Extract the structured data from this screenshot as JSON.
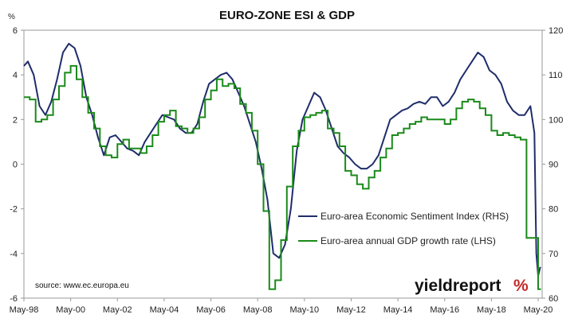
{
  "chart_data": {
    "type": "line",
    "title": "EURO-ZONE ESI & GDP",
    "left_axis": {
      "unit": "%",
      "ylim": [
        -6,
        6
      ],
      "ticks": [
        "6",
        "4",
        "2",
        "0",
        "-2",
        "-4",
        "-6"
      ]
    },
    "right_axis": {
      "ylim": [
        60,
        120
      ],
      "ticks": [
        "120",
        "110",
        "100",
        "90",
        "80",
        "70",
        "60"
      ]
    },
    "x_axis": {
      "range": [
        1998.33,
        2020.5
      ],
      "tick_labels": [
        "May-98",
        "May-00",
        "May-02",
        "May-04",
        "May-06",
        "May-08",
        "May-10",
        "May-12",
        "May-14",
        "May-16",
        "May-18",
        "May-20"
      ],
      "tick_positions": [
        1998.33,
        2000.33,
        2002.33,
        2004.33,
        2006.33,
        2008.33,
        2010.33,
        2012.33,
        2014.33,
        2016.33,
        2018.33,
        2020.33
      ]
    },
    "gridlines": false,
    "legend_position": "lower-right",
    "series": [
      {
        "name": "Euro-area Economic Sentiment Index (RHS)",
        "axis": "right",
        "color": "#1f2d6b",
        "x": [
          1998.33,
          1998.5,
          1998.75,
          1999.0,
          1999.25,
          1999.5,
          1999.75,
          2000.0,
          2000.25,
          2000.5,
          2000.75,
          2001.0,
          2001.25,
          2001.5,
          2001.75,
          2002.0,
          2002.25,
          2002.5,
          2002.75,
          2003.0,
          2003.25,
          2003.5,
          2003.75,
          2004.0,
          2004.25,
          2004.5,
          2004.75,
          2005.0,
          2005.25,
          2005.5,
          2005.75,
          2006.0,
          2006.25,
          2006.5,
          2006.75,
          2007.0,
          2007.25,
          2007.5,
          2007.75,
          2008.0,
          2008.25,
          2008.5,
          2008.75,
          2009.0,
          2009.25,
          2009.5,
          2009.75,
          2010.0,
          2010.25,
          2010.5,
          2010.75,
          2011.0,
          2011.25,
          2011.5,
          2011.75,
          2012.0,
          2012.25,
          2012.5,
          2012.75,
          2013.0,
          2013.25,
          2013.5,
          2013.75,
          2014.0,
          2014.25,
          2014.5,
          2014.75,
          2015.0,
          2015.25,
          2015.5,
          2015.75,
          2016.0,
          2016.25,
          2016.5,
          2016.75,
          2017.0,
          2017.25,
          2017.5,
          2017.75,
          2018.0,
          2018.25,
          2018.5,
          2018.75,
          2019.0,
          2019.25,
          2019.5,
          2019.75,
          2020.0,
          2020.17,
          2020.25,
          2020.33,
          2020.42
        ],
        "values": [
          112,
          113,
          110,
          103,
          101,
          104,
          109,
          115,
          117,
          116,
          112,
          105,
          101,
          96,
          92,
          96,
          96.5,
          95,
          93.5,
          93,
          92,
          95,
          97,
          99,
          101,
          100.5,
          100,
          98,
          97,
          97,
          99,
          104,
          108,
          109,
          110,
          110.5,
          109,
          106,
          103,
          99,
          95,
          89,
          82,
          70,
          69,
          72,
          80,
          93,
          100,
          103,
          106,
          105,
          102,
          98,
          94,
          92.5,
          91.5,
          90,
          89,
          89,
          90,
          92,
          96,
          100,
          101,
          102,
          102.5,
          103.5,
          104,
          103.5,
          105,
          105,
          103,
          104,
          106,
          109,
          111,
          113,
          115,
          114,
          111,
          110,
          108,
          104,
          102,
          101,
          101,
          103,
          97,
          70,
          65,
          67
        ]
      },
      {
        "name": "Euro-area annual GDP growth rate (LHS)",
        "axis": "left",
        "color": "#1a8a1a",
        "step": true,
        "x": [
          1998.33,
          1998.58,
          1998.83,
          1999.08,
          1999.33,
          1999.58,
          1999.83,
          2000.08,
          2000.33,
          2000.58,
          2000.83,
          2001.08,
          2001.33,
          2001.58,
          2001.83,
          2002.08,
          2002.33,
          2002.58,
          2002.83,
          2003.08,
          2003.33,
          2003.58,
          2003.83,
          2004.08,
          2004.33,
          2004.58,
          2004.83,
          2005.08,
          2005.33,
          2005.58,
          2005.83,
          2006.08,
          2006.33,
          2006.58,
          2006.83,
          2007.08,
          2007.33,
          2007.58,
          2007.83,
          2008.08,
          2008.33,
          2008.58,
          2008.83,
          2009.08,
          2009.33,
          2009.58,
          2009.83,
          2010.08,
          2010.33,
          2010.58,
          2010.83,
          2011.08,
          2011.33,
          2011.58,
          2011.83,
          2012.08,
          2012.33,
          2012.58,
          2012.83,
          2013.08,
          2013.33,
          2013.58,
          2013.83,
          2014.08,
          2014.33,
          2014.58,
          2014.83,
          2015.08,
          2015.33,
          2015.58,
          2015.83,
          2016.08,
          2016.33,
          2016.58,
          2016.83,
          2017.08,
          2017.33,
          2017.58,
          2017.83,
          2018.08,
          2018.33,
          2018.58,
          2018.83,
          2019.08,
          2019.33,
          2019.58,
          2019.83,
          2020.08,
          2020.33
        ],
        "values": [
          3.0,
          2.9,
          1.9,
          2.0,
          2.2,
          2.9,
          3.5,
          4.1,
          4.4,
          3.8,
          3.0,
          2.3,
          1.6,
          0.8,
          0.4,
          0.3,
          0.9,
          1.1,
          0.7,
          0.7,
          0.5,
          0.8,
          1.3,
          1.9,
          2.2,
          2.4,
          1.7,
          1.6,
          1.4,
          1.6,
          2.1,
          2.9,
          3.3,
          3.8,
          3.5,
          3.6,
          3.4,
          2.7,
          2.3,
          1.5,
          0.0,
          -2.1,
          -5.6,
          -5.2,
          -3.4,
          -1.0,
          0.8,
          1.5,
          2.1,
          2.2,
          2.3,
          2.4,
          1.6,
          1.4,
          0.8,
          -0.3,
          -0.5,
          -0.9,
          -1.1,
          -0.6,
          -0.3,
          0.3,
          0.7,
          1.3,
          1.4,
          1.6,
          1.8,
          1.9,
          2.1,
          2.0,
          2.0,
          2.0,
          1.8,
          2.0,
          2.5,
          2.8,
          2.9,
          2.8,
          2.5,
          2.2,
          1.5,
          1.3,
          1.4,
          1.3,
          1.2,
          1.1,
          -3.3,
          -3.3,
          -5.6
        ]
      }
    ],
    "source": "source: www.ec.europa.eu",
    "brand": {
      "text": "yieldreport",
      "mark": "%"
    }
  }
}
